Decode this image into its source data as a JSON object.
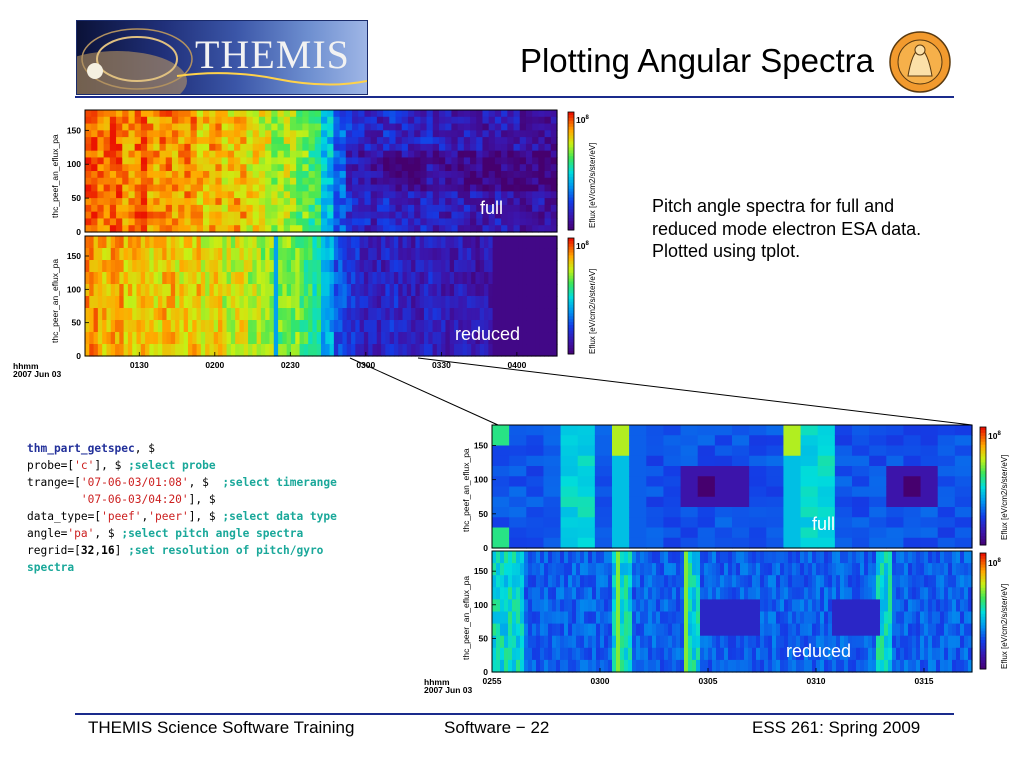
{
  "slide": {
    "title": "Plotting Angular Spectra",
    "logo_text": "THEMIS",
    "seal_text": "THEMIS",
    "caption": "Pitch angle spectra for full and reduced mode electron ESA data. Plotted using tplot.",
    "footer_left": "THEMIS Science Software Training",
    "footer_center": "Software − 22",
    "footer_right": "ESS 261: Spring 2009"
  },
  "code": {
    "l1_kw": "thm_part_getspec",
    "l1_rest": ", $",
    "l2_a": "probe=[",
    "l2_s": "'c'",
    "l2_b": "], $ ",
    "l2_c": ";select probe",
    "l3_a": "trange=[",
    "l3_s": "'07-06-03/01:08'",
    "l3_b": ", $  ",
    "l3_c": ";select timerange",
    "l4_pad": "        ",
    "l4_s": "'07-06-03/04:20'",
    "l4_b": "], $",
    "l5_a": "data_type=[",
    "l5_s1": "'peef'",
    "l5_m": ",",
    "l5_s2": "'peer'",
    "l5_b": "], $ ",
    "l5_c": ";select data type",
    "l6_a": "angle=",
    "l6_s": "'pa'",
    "l6_b": ", $ ",
    "l6_c": ";select pitch angle spectra",
    "l7_a": "regrid=[",
    "l7_n1": "32",
    "l7_m": ",",
    "l7_n2": "16",
    "l7_b": "] ",
    "l7_c": ";set resolution of pitch/gyro",
    "l8_c": "spectra"
  },
  "colors": {
    "accent_rule": "#1a2b8c",
    "code_keyword": "#22309a",
    "code_string": "#cc2020",
    "code_comment": "#1aa89a"
  },
  "chart_data": [
    {
      "type": "heatmap",
      "name": "top-overview",
      "panels": [
        {
          "ylabel": "thc_peef_an_eflux_pa",
          "label": "full",
          "yticks": [
            "150",
            "100",
            "50",
            "0"
          ],
          "ylim": [
            0,
            180
          ],
          "cbar_top": "10",
          "cbar_exp": "8",
          "cbar_label": "Eflux [eV/cm2/s/ster/eV]"
        },
        {
          "ylabel": "thc_peer_an_eflux_pa",
          "label": "reduced",
          "yticks": [
            "150",
            "100",
            "50",
            "0"
          ],
          "ylim": [
            0,
            180
          ],
          "cbar_top": "10",
          "cbar_exp": "8",
          "cbar_label": "Eflux [eV/cm2/s/ster/eV]"
        }
      ],
      "x_label_1": "hhmm",
      "x_label_2": "2007 Jun 03",
      "xticks": [
        "0130",
        "0200",
        "0230",
        "0300",
        "0330",
        "0400"
      ],
      "relative_intensity_profile": [
        0.95,
        0.9,
        0.93,
        0.88,
        0.92,
        0.86,
        0.9,
        0.85,
        0.88,
        0.82,
        0.86,
        0.8,
        0.84,
        0.78,
        0.75,
        0.7,
        0.72,
        0.66,
        0.6,
        0.45,
        0.3,
        0.22,
        0.18,
        0.16,
        0.2,
        0.17,
        0.15,
        0.18,
        0.16,
        0.14,
        0.15,
        0.13,
        0.12,
        0.14,
        0.12,
        0.1,
        0.11,
        0.1
      ]
    },
    {
      "type": "heatmap",
      "name": "zoomed-0255-0318",
      "panels": [
        {
          "ylabel": "thc_peef_an_eflux_pa",
          "label": "full",
          "yticks": [
            "150",
            "100",
            "50",
            "0"
          ],
          "ylim": [
            0,
            180
          ],
          "cbar_top": "10",
          "cbar_exp": "8",
          "cbar_label": "Eflux [eV/cm2/s/ster/eV]"
        },
        {
          "ylabel": "thc_peer_an_eflux_pa",
          "label": "reduced",
          "yticks": [
            "150",
            "100",
            "50",
            "0"
          ],
          "ylim": [
            0,
            180
          ],
          "cbar_top": "10",
          "cbar_exp": "8",
          "cbar_label": "Eflux [eV/cm2/s/ster/eV]"
        }
      ],
      "x_label_1": "hhmm",
      "x_label_2": "2007 Jun 03",
      "xticks": [
        "0255",
        "0300",
        "0305",
        "0310",
        "0315"
      ]
    }
  ]
}
